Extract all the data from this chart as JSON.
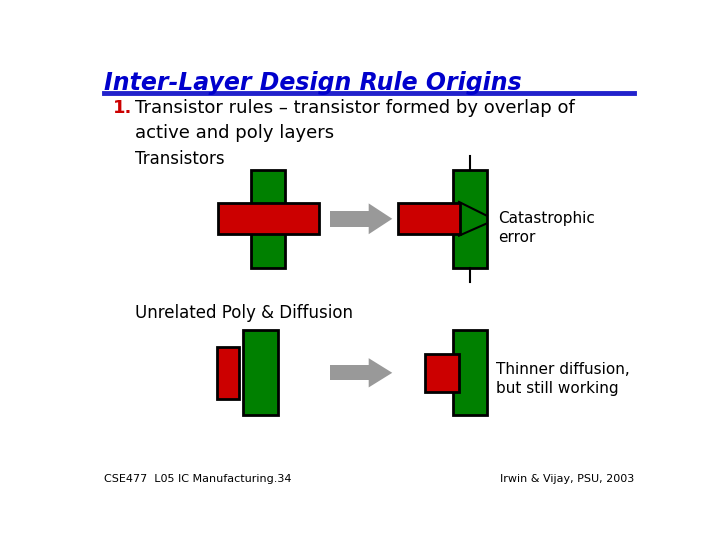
{
  "title": "Inter-Layer Design Rule Origins",
  "title_color": "#0000CC",
  "title_underline_color": "#2222CC",
  "bg_color": "#ffffff",
  "item1_label": "1.",
  "item1_text": "Transistor rules – transistor formed by overlap of\nactive and poly layers",
  "section1_label": "Transistors",
  "section2_label": "Unrelated Poly & Diffusion",
  "annotation1": "Catastrophic\nerror",
  "annotation2": "Thinner diffusion,\nbut still working",
  "footer_left": "CSE477  L05 IC Manufacturing.34",
  "footer_right": "Irwin & Vijay, PSU, 2003",
  "green": "#008000",
  "red": "#CC0000",
  "gray": "#999999",
  "dark_gray": "#777777",
  "black": "#000000",
  "title_fontsize": 17,
  "body_fontsize": 13,
  "section_fontsize": 12,
  "annot_fontsize": 11,
  "footer_fontsize": 8
}
